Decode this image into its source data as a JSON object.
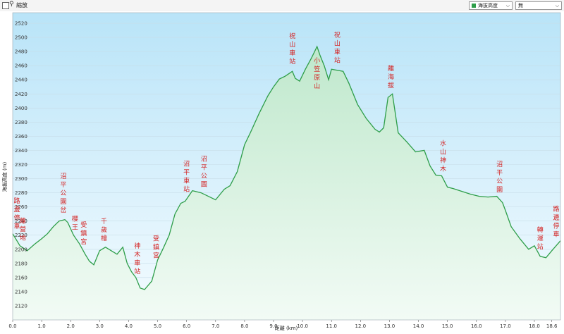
{
  "toolbar": {
    "zoom_label": "縮放",
    "series_select": "海拔高度",
    "overlay_select": "無"
  },
  "colors": {
    "line": "#2e9e49",
    "label": "#d42323",
    "sky_top": "#b9e4f8",
    "ground_bottom": "#f2fbf5"
  },
  "chart_data": {
    "type": "area",
    "title": "",
    "xlabel": "距離 (km)",
    "ylabel": "海拔高度 (m)",
    "xlim": [
      0,
      18.9
    ],
    "ylim": [
      2100,
      2535
    ],
    "x_ticks": [
      "0.0",
      "1.0",
      "2.0",
      "3.0",
      "4.0",
      "5.0",
      "6.0",
      "7.0",
      "8.0",
      "9.0",
      "10.0",
      "11.0",
      "12.0",
      "13.0",
      "14.0",
      "15.0",
      "16.0",
      "17.0",
      "18.0",
      "18.6"
    ],
    "y_ticks": [
      "2120",
      "2140",
      "2160",
      "2180",
      "2200",
      "2220",
      "2240",
      "2260",
      "2280",
      "2300",
      "2320",
      "2340",
      "2360",
      "2380",
      "2400",
      "2420",
      "2440",
      "2460",
      "2480",
      "2500",
      "2520"
    ],
    "series": [
      {
        "x": [
          0,
          0.25,
          0.5,
          0.75,
          1.0,
          1.2,
          1.4,
          1.6,
          1.8,
          1.9,
          2.1,
          2.3,
          2.5,
          2.65,
          2.8,
          3.0,
          3.2,
          3.4,
          3.6,
          3.8,
          3.95,
          4.1,
          4.25,
          4.4,
          4.55,
          4.8,
          5.0,
          5.2,
          5.4,
          5.6,
          5.8,
          5.95,
          6.2,
          6.5,
          6.75,
          7.0,
          7.3,
          7.5,
          7.75,
          8.0,
          8.2,
          8.5,
          8.8,
          9.0,
          9.2,
          9.4,
          9.65,
          9.75,
          9.9,
          10.1,
          10.3,
          10.5,
          10.6,
          10.75,
          10.9,
          11.0,
          11.4,
          11.6,
          11.9,
          12.2,
          12.5,
          12.65,
          12.8,
          12.95,
          13.1,
          13.3,
          13.6,
          13.9,
          14.2,
          14.4,
          14.6,
          14.8,
          15.0,
          15.2,
          15.5,
          15.8,
          16.1,
          16.4,
          16.7,
          16.9,
          17.0,
          17.2,
          17.5,
          17.8,
          18.0,
          18.2,
          18.4,
          18.6,
          18.9
        ],
        "y": [
          2222,
          2205,
          2198,
          2207,
          2215,
          2222,
          2232,
          2240,
          2242,
          2238,
          2220,
          2208,
          2193,
          2183,
          2178,
          2198,
          2203,
          2198,
          2193,
          2203,
          2180,
          2168,
          2160,
          2145,
          2143,
          2155,
          2185,
          2202,
          2220,
          2250,
          2265,
          2268,
          2283,
          2280,
          2275,
          2270,
          2285,
          2290,
          2310,
          2348,
          2365,
          2392,
          2417,
          2430,
          2441,
          2445,
          2452,
          2442,
          2438,
          2455,
          2470,
          2487,
          2475,
          2460,
          2440,
          2455,
          2452,
          2435,
          2405,
          2385,
          2370,
          2366,
          2372,
          2415,
          2420,
          2365,
          2352,
          2338,
          2340,
          2318,
          2305,
          2304,
          2288,
          2286,
          2282,
          2278,
          2275,
          2274,
          2275,
          2266,
          2255,
          2232,
          2215,
          2200,
          2205,
          2190,
          2188,
          2198,
          2212
        ]
      }
    ],
    "annotations": [
      {
        "text": "路邊停車",
        "x": 0.05
      },
      {
        "text": "離營地",
        "x": 0.35
      },
      {
        "text": "沼平公園岔",
        "x": 1.75
      },
      {
        "text": "櫻王",
        "x": 2.15
      },
      {
        "text": "受鎮宮",
        "x": 2.45
      },
      {
        "text": "千歲檜",
        "x": 3.15
      },
      {
        "text": "神木車站",
        "x": 4.3
      },
      {
        "text": "受鎮宮",
        "x": 4.95
      },
      {
        "text": "沼平車站",
        "x": 6.0
      },
      {
        "text": "沼平公園",
        "x": 6.6
      },
      {
        "text": "祝山車站",
        "x": 9.65
      },
      {
        "text": "小笠原山",
        "x": 10.5
      },
      {
        "text": "祝山車站",
        "x": 11.2
      },
      {
        "text": "離海拔",
        "x": 13.05
      },
      {
        "text": "水山神木",
        "x": 14.85
      },
      {
        "text": "沼平公園",
        "x": 16.8
      },
      {
        "text": "轉運站",
        "x": 18.2
      },
      {
        "text": "路邊停車",
        "x": 18.8
      }
    ]
  }
}
